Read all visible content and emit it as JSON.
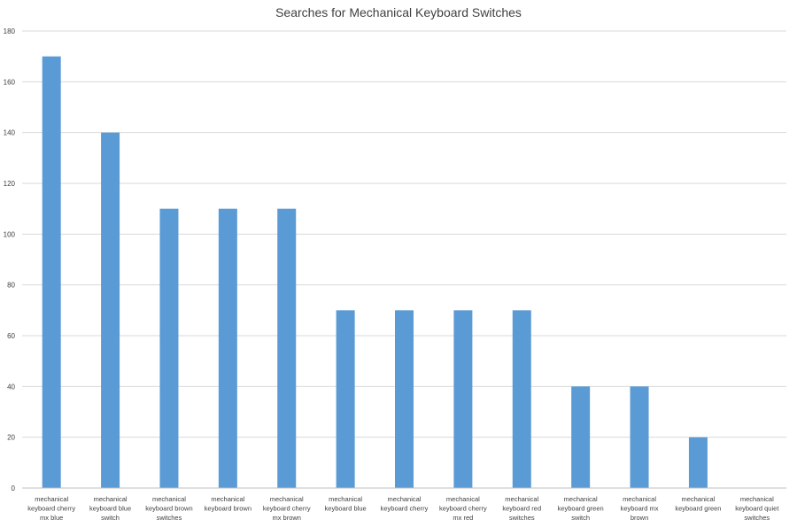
{
  "chart_data": {
    "type": "bar",
    "title": "Searches for Mechanical Keyboard Switches",
    "xlabel": "",
    "ylabel": "",
    "ylim": [
      0,
      180
    ],
    "yticks": [
      0,
      20,
      40,
      60,
      80,
      100,
      120,
      140,
      160,
      180
    ],
    "grid": true,
    "legend": "none",
    "bar_color": "#5b9bd5",
    "categories": [
      [
        "mechanical",
        "keyboard cherry",
        "mx blue"
      ],
      [
        "mechanical",
        "keyboard blue",
        "switch"
      ],
      [
        "mechanical",
        "keyboard brown",
        "switches"
      ],
      [
        "mechanical",
        "keyboard brown"
      ],
      [
        "mechanical",
        "keyboard cherry",
        "mx brown"
      ],
      [
        "mechanical",
        "keyboard blue"
      ],
      [
        "mechanical",
        "keyboard cherry"
      ],
      [
        "mechanical",
        "keyboard cherry",
        "mx red"
      ],
      [
        "mechanical",
        "keyboard red",
        "switches"
      ],
      [
        "mechanical",
        "keyboard green",
        "switch"
      ],
      [
        "mechanical",
        "keyboard mx",
        "brown"
      ],
      [
        "mechanical",
        "keyboard green"
      ],
      [
        "mechanical",
        "keyboard quiet",
        "switches"
      ]
    ],
    "values": [
      170,
      140,
      110,
      110,
      110,
      70,
      70,
      70,
      70,
      40,
      40,
      20,
      0
    ]
  }
}
